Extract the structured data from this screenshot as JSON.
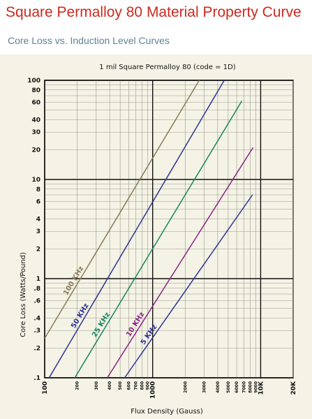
{
  "page": {
    "title": "Square Permalloy 80 Material Property Curve",
    "subtitle": "Core Loss vs. Induction Level Curves"
  },
  "chart_data": {
    "type": "line",
    "title": "1 mil Square Permalloy 80 (code = 1D)",
    "xlabel": "Flux Density (Gauss)",
    "ylabel": "Core Loss (Watts/Pound)",
    "x_scale": "log",
    "y_scale": "log",
    "xlim": [
      100,
      20000
    ],
    "ylim": [
      0.1,
      100
    ],
    "grid": true,
    "x_ticks": [
      {
        "value": 100,
        "label": "100",
        "major": true
      },
      {
        "value": 200,
        "label": "200",
        "major": false
      },
      {
        "value": 300,
        "label": "300",
        "major": false
      },
      {
        "value": 400,
        "label": "400",
        "major": false
      },
      {
        "value": 500,
        "label": "500",
        "major": false
      },
      {
        "value": 600,
        "label": "600",
        "major": false
      },
      {
        "value": 700,
        "label": "700",
        "major": false
      },
      {
        "value": 800,
        "label": "800",
        "major": false
      },
      {
        "value": 900,
        "label": "900",
        "major": false
      },
      {
        "value": 1000,
        "label": "1000",
        "major": true
      },
      {
        "value": 2000,
        "label": "2000",
        "major": false
      },
      {
        "value": 3000,
        "label": "3000",
        "major": false
      },
      {
        "value": 4000,
        "label": "4000",
        "major": false
      },
      {
        "value": 5000,
        "label": "5000",
        "major": false
      },
      {
        "value": 6000,
        "label": "6000",
        "major": false
      },
      {
        "value": 7000,
        "label": "7000",
        "major": false
      },
      {
        "value": 8000,
        "label": "8000",
        "major": false
      },
      {
        "value": 9000,
        "label": "9000",
        "major": false
      },
      {
        "value": 10000,
        "label": "10K",
        "major": true
      },
      {
        "value": 20000,
        "label": "20K",
        "major": true
      }
    ],
    "y_ticks": [
      {
        "value": 0.1,
        "label": ".1",
        "major": true
      },
      {
        "value": 0.2,
        "label": ".2",
        "major": false
      },
      {
        "value": 0.3,
        "label": ".3",
        "major": false
      },
      {
        "value": 0.4,
        "label": ".4",
        "major": false
      },
      {
        "value": 0.6,
        "label": ".6",
        "major": false
      },
      {
        "value": 0.8,
        "label": ".8",
        "major": false
      },
      {
        "value": 1,
        "label": "1",
        "major": true
      },
      {
        "value": 2,
        "label": "2",
        "major": false
      },
      {
        "value": 3,
        "label": "3",
        "major": false
      },
      {
        "value": 4,
        "label": "4",
        "major": false
      },
      {
        "value": 6,
        "label": "6",
        "major": false
      },
      {
        "value": 8,
        "label": "8",
        "major": false
      },
      {
        "value": 10,
        "label": "10",
        "major": true
      },
      {
        "value": 20,
        "label": "20",
        "major": false
      },
      {
        "value": 30,
        "label": "30",
        "major": false
      },
      {
        "value": 40,
        "label": "40",
        "major": false
      },
      {
        "value": 60,
        "label": "60",
        "major": false
      },
      {
        "value": 80,
        "label": "80",
        "major": false
      },
      {
        "value": 100,
        "label": "100",
        "major": true
      }
    ],
    "series": [
      {
        "name": "100 KHz",
        "color": "#8a7a56",
        "x": [
          100,
          2700
        ],
        "y": [
          0.25,
          100
        ]
      },
      {
        "name": "50 KHz",
        "color": "#2e3293",
        "x": [
          110,
          4600
        ],
        "y": [
          0.1,
          100
        ]
      },
      {
        "name": "25 KHz",
        "color": "#17865f",
        "x": [
          190,
          6700
        ],
        "y": [
          0.1,
          62
        ]
      },
      {
        "name": "10 KHz",
        "color": "#8a2383",
        "x": [
          380,
          8500
        ],
        "y": [
          0.1,
          21
        ]
      },
      {
        "name": "5 KHz",
        "color": "#2e3293",
        "x": [
          550,
          8400
        ],
        "y": [
          0.1,
          7
        ]
      }
    ]
  }
}
